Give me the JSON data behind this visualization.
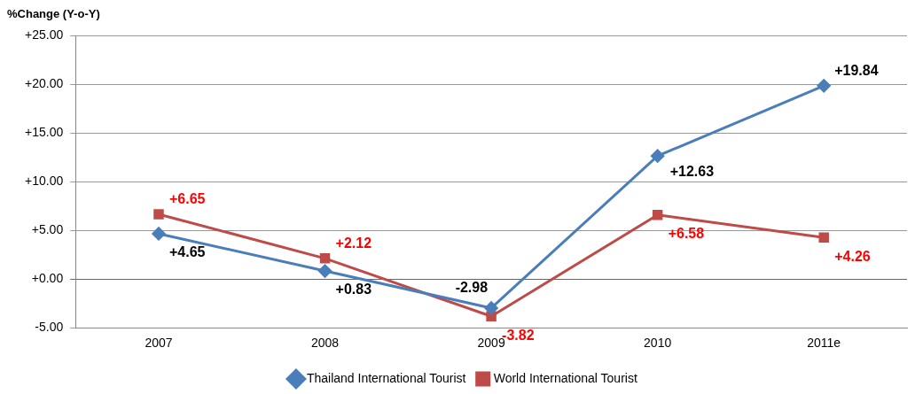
{
  "chart_data": {
    "type": "line",
    "ylabel": "%Change (Y-o-Y)",
    "categories": [
      "2007",
      "2008",
      "2009",
      "2010",
      "2011e"
    ],
    "series": [
      {
        "name": "Thailand International Tourist",
        "color": "#4a7ebb",
        "values": [
          4.65,
          0.83,
          -2.98,
          12.63,
          19.84
        ],
        "marker": "diamond",
        "value_labels": [
          "+4.65",
          "+0.83",
          "-2.98",
          "+12.63",
          "+19.84"
        ]
      },
      {
        "name": "World International Tourist",
        "color": "#be4b48",
        "values": [
          6.65,
          2.12,
          -3.82,
          6.58,
          4.26
        ],
        "marker": "square",
        "value_labels": [
          "+6.65",
          "+2.12",
          "-3.82",
          "+6.58",
          "+4.26"
        ]
      }
    ],
    "ylim": [
      -5,
      25
    ],
    "yticks": [
      {
        "value": -5,
        "label": "-5.00"
      },
      {
        "value": 0,
        "label": "+0.00"
      },
      {
        "value": 5,
        "label": "+5.00"
      },
      {
        "value": 10,
        "label": "+10.00"
      },
      {
        "value": 15,
        "label": "+15.00"
      },
      {
        "value": 20,
        "label": "+20.00"
      },
      {
        "value": 25,
        "label": "+25.00"
      }
    ],
    "grid": "y",
    "legend": "bottom"
  }
}
